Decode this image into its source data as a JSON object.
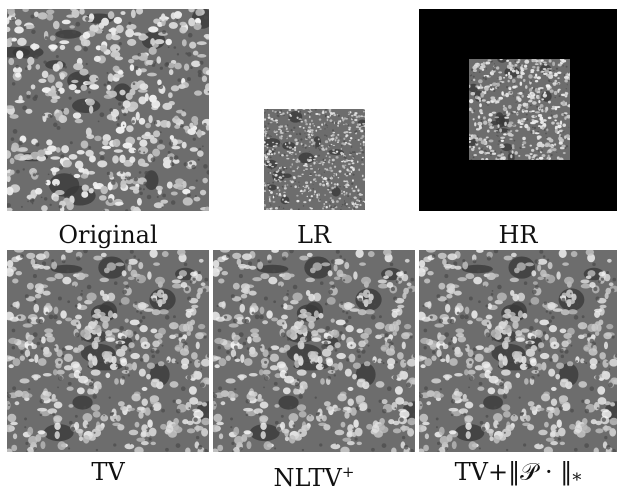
{
  "figure": {
    "panels": [
      {
        "id": "original",
        "caption": "Original",
        "texture_seed": 11,
        "scale": 1.0
      },
      {
        "id": "lr",
        "caption": "LR",
        "texture_seed": 23,
        "scale": 0.45
      },
      {
        "id": "hr",
        "caption": "HR",
        "texture_seed": 37,
        "scale": 1.0
      },
      {
        "id": "tv",
        "caption": "TV",
        "texture_seed": 51,
        "scale": 1.0
      },
      {
        "id": "nltv",
        "caption": "NLTV",
        "caption_sup": "+",
        "texture_seed": 51,
        "scale": 1.0
      },
      {
        "id": "tv-nuclear",
        "caption": "TV+‖𝒫 · ‖",
        "caption_sub": "*",
        "texture_seed": 51,
        "scale": 1.0
      }
    ]
  }
}
